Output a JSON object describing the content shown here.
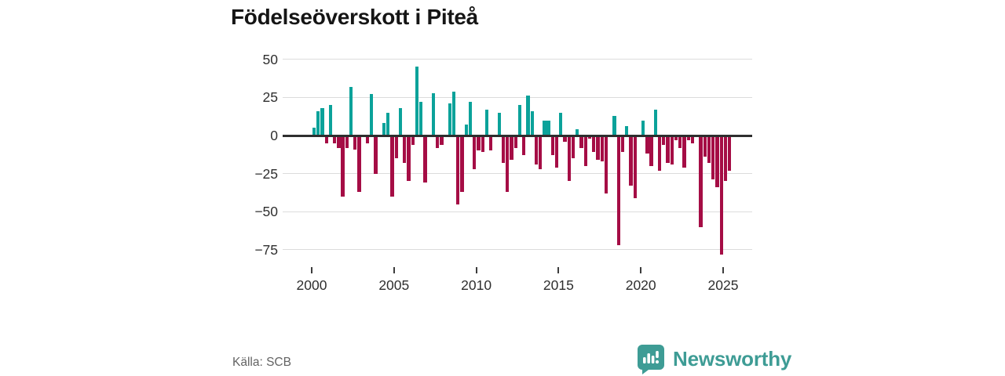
{
  "title": "Födelseöverskott i Piteå",
  "source": "Källa: SCB",
  "brand": {
    "name": "Newsworthy"
  },
  "colors": {
    "positive": "#0ba29a",
    "negative": "#a50d45",
    "axis": "#2e2e2e",
    "grid": "#dcdcdc",
    "title_text": "#151515",
    "tick_text": "#2f2f2f",
    "muted_text": "#636363",
    "brand": "#3e9c95"
  },
  "chart_data": {
    "type": "bar",
    "title": "Födelseöverskott i Piteå",
    "granularity": "quarterly",
    "xlabel": "",
    "ylabel": "",
    "x_tick_labels": [
      "2000",
      "2005",
      "2010",
      "2015",
      "2020",
      "2025"
    ],
    "y_tick_labels": [
      "50",
      "25",
      "0",
      "−25",
      "−50",
      "−75"
    ],
    "y_ticks": [
      50,
      25,
      0,
      -25,
      -50,
      -75
    ],
    "ylim": [
      -85,
      55
    ],
    "grid": true,
    "legend": "none",
    "series": [
      {
        "year": 2000,
        "values": [
          5,
          16,
          18,
          -5
        ]
      },
      {
        "year": 2001,
        "values": [
          20,
          -5,
          -8,
          -40
        ]
      },
      {
        "year": 2002,
        "values": [
          -8,
          32,
          -9,
          -37
        ]
      },
      {
        "year": 2003,
        "values": [
          0,
          -5,
          27,
          -25
        ]
      },
      {
        "year": 2004,
        "values": [
          0,
          8,
          15,
          -40
        ]
      },
      {
        "year": 2005,
        "values": [
          -15,
          18,
          -18,
          -30
        ]
      },
      {
        "year": 2006,
        "values": [
          -6,
          45,
          22,
          -31
        ]
      },
      {
        "year": 2007,
        "values": [
          0,
          28,
          -8,
          -6
        ]
      },
      {
        "year": 2008,
        "values": [
          0,
          21,
          29,
          -45
        ]
      },
      {
        "year": 2009,
        "values": [
          -37,
          7,
          22,
          -22
        ]
      },
      {
        "year": 2010,
        "values": [
          -10,
          -11,
          17,
          -10
        ]
      },
      {
        "year": 2011,
        "values": [
          0,
          15,
          -18,
          -37
        ]
      },
      {
        "year": 2012,
        "values": [
          -16,
          -8,
          20,
          -13
        ]
      },
      {
        "year": 2013,
        "values": [
          26,
          16,
          -19,
          -22
        ]
      },
      {
        "year": 2014,
        "values": [
          10,
          10,
          -13,
          -21
        ]
      },
      {
        "year": 2015,
        "values": [
          15,
          -4,
          -30,
          -15
        ]
      },
      {
        "year": 2016,
        "values": [
          4,
          -8,
          -20,
          -2
        ]
      },
      {
        "year": 2017,
        "values": [
          -11,
          -16,
          -17,
          -38
        ]
      },
      {
        "year": 2018,
        "values": [
          0,
          13,
          -72,
          -11
        ]
      },
      {
        "year": 2019,
        "values": [
          6,
          -33,
          -41,
          0
        ]
      },
      {
        "year": 2020,
        "values": [
          10,
          -12,
          -20,
          17
        ]
      },
      {
        "year": 2021,
        "values": [
          -23,
          -6,
          -18,
          -19
        ]
      },
      {
        "year": 2022,
        "values": [
          -3,
          -8,
          -21,
          -3
        ]
      },
      {
        "year": 2023,
        "values": [
          -5,
          0,
          -60,
          -14
        ]
      },
      {
        "year": 2024,
        "values": [
          -18,
          -29,
          -34,
          -78
        ]
      },
      {
        "year": 2025,
        "values": [
          -30,
          -23
        ]
      }
    ]
  }
}
